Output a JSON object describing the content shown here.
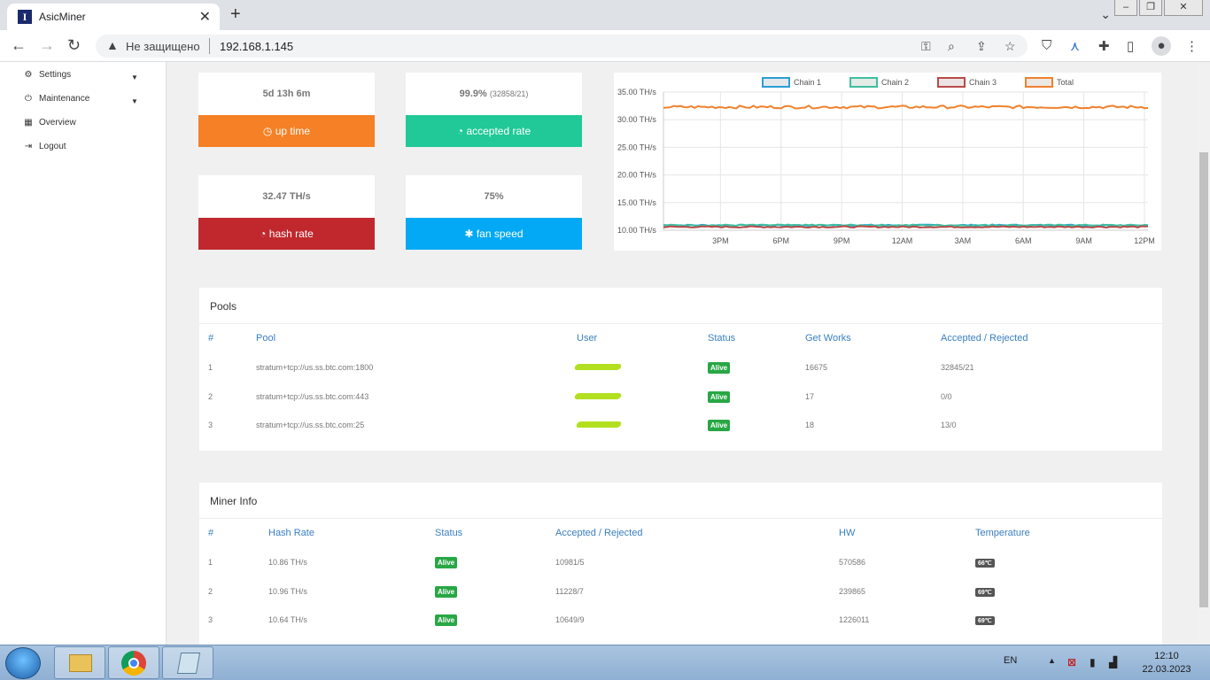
{
  "browser": {
    "tab_title": "AsicMiner",
    "favicon_letter": "I",
    "insecure_label": "Не защищено",
    "url": "192.168.1.145"
  },
  "sidebar": {
    "items": [
      {
        "label": "Settings",
        "icon": "gears-icon",
        "has_caret": true
      },
      {
        "label": "Maintenance",
        "icon": "plug-icon",
        "has_caret": true
      },
      {
        "label": "Overview",
        "icon": "chip-icon",
        "has_caret": false
      },
      {
        "label": "Logout",
        "icon": "logout-icon",
        "has_caret": false
      }
    ]
  },
  "cards": {
    "uptime": {
      "value": "5d 13h 6m",
      "label": "up time",
      "color": "#f58025"
    },
    "accepted": {
      "value": "99.9%",
      "sub": "(32858/21)",
      "label": "accepted rate",
      "color": "#20c997"
    },
    "hashrate": {
      "value": "32.47 TH/s",
      "label": "hash rate",
      "color": "#c0282d"
    },
    "fan": {
      "value": "75%",
      "label": "fan speed",
      "color": "#03a9f4"
    }
  },
  "chart_data": {
    "type": "line",
    "legend_position": "top",
    "x": [
      "3PM",
      "6PM",
      "9PM",
      "12AM",
      "3AM",
      "6AM",
      "9AM",
      "12PM"
    ],
    "ytick_labels": [
      "10.00 TH/s",
      "15.00 TH/s",
      "20.00 TH/s",
      "25.00 TH/s",
      "30.00 TH/s",
      "35.00 TH/s"
    ],
    "ylim": [
      10,
      35
    ],
    "grid": true,
    "series": [
      {
        "name": "Chain 1",
        "color": "#2a9fd6",
        "fill": "#e4e8ec",
        "level": 10.9
      },
      {
        "name": "Chain 2",
        "color": "#3fbf9f",
        "fill": "#e4ece8",
        "level": 10.9
      },
      {
        "name": "Chain 3",
        "color": "#b94a48",
        "fill": "#ece4e4",
        "level": 10.6
      },
      {
        "name": "Total",
        "color": "#f0812d",
        "fill": "#ece8e4",
        "level": 32.3
      }
    ]
  },
  "pools": {
    "title": "Pools",
    "headers": [
      "#",
      "Pool",
      "User",
      "Status",
      "Get Works",
      "Accepted / Rejected"
    ],
    "rows": [
      {
        "num": "1",
        "pool": "stratum+tcp://us.ss.btc.com:1800",
        "status": "Alive",
        "works": "16675",
        "ar": "32845/21"
      },
      {
        "num": "2",
        "pool": "stratum+tcp://us.ss.btc.com:443",
        "status": "Alive",
        "works": "17",
        "ar": "0/0"
      },
      {
        "num": "3",
        "pool": "stratum+tcp://us.ss.btc.com:25",
        "status": "Alive",
        "works": "18",
        "ar": "13/0"
      }
    ]
  },
  "miner": {
    "title": "Miner Info",
    "headers": [
      "#",
      "Hash Rate",
      "Status",
      "Accepted / Rejected",
      "HW",
      "Temperature"
    ],
    "rows": [
      {
        "num": "1",
        "rate": "10.86 TH/s",
        "status": "Alive",
        "ar": "10981/5",
        "hw": "570586",
        "temp": "66℃"
      },
      {
        "num": "2",
        "rate": "10.96 TH/s",
        "status": "Alive",
        "ar": "11228/7",
        "hw": "239865",
        "temp": "69℃"
      },
      {
        "num": "3",
        "rate": "10.64 TH/s",
        "status": "Alive",
        "ar": "10649/9",
        "hw": "1226011",
        "temp": "69℃"
      }
    ]
  },
  "taskbar": {
    "lang": "EN",
    "time": "12:10",
    "date": "22.03.2023"
  }
}
